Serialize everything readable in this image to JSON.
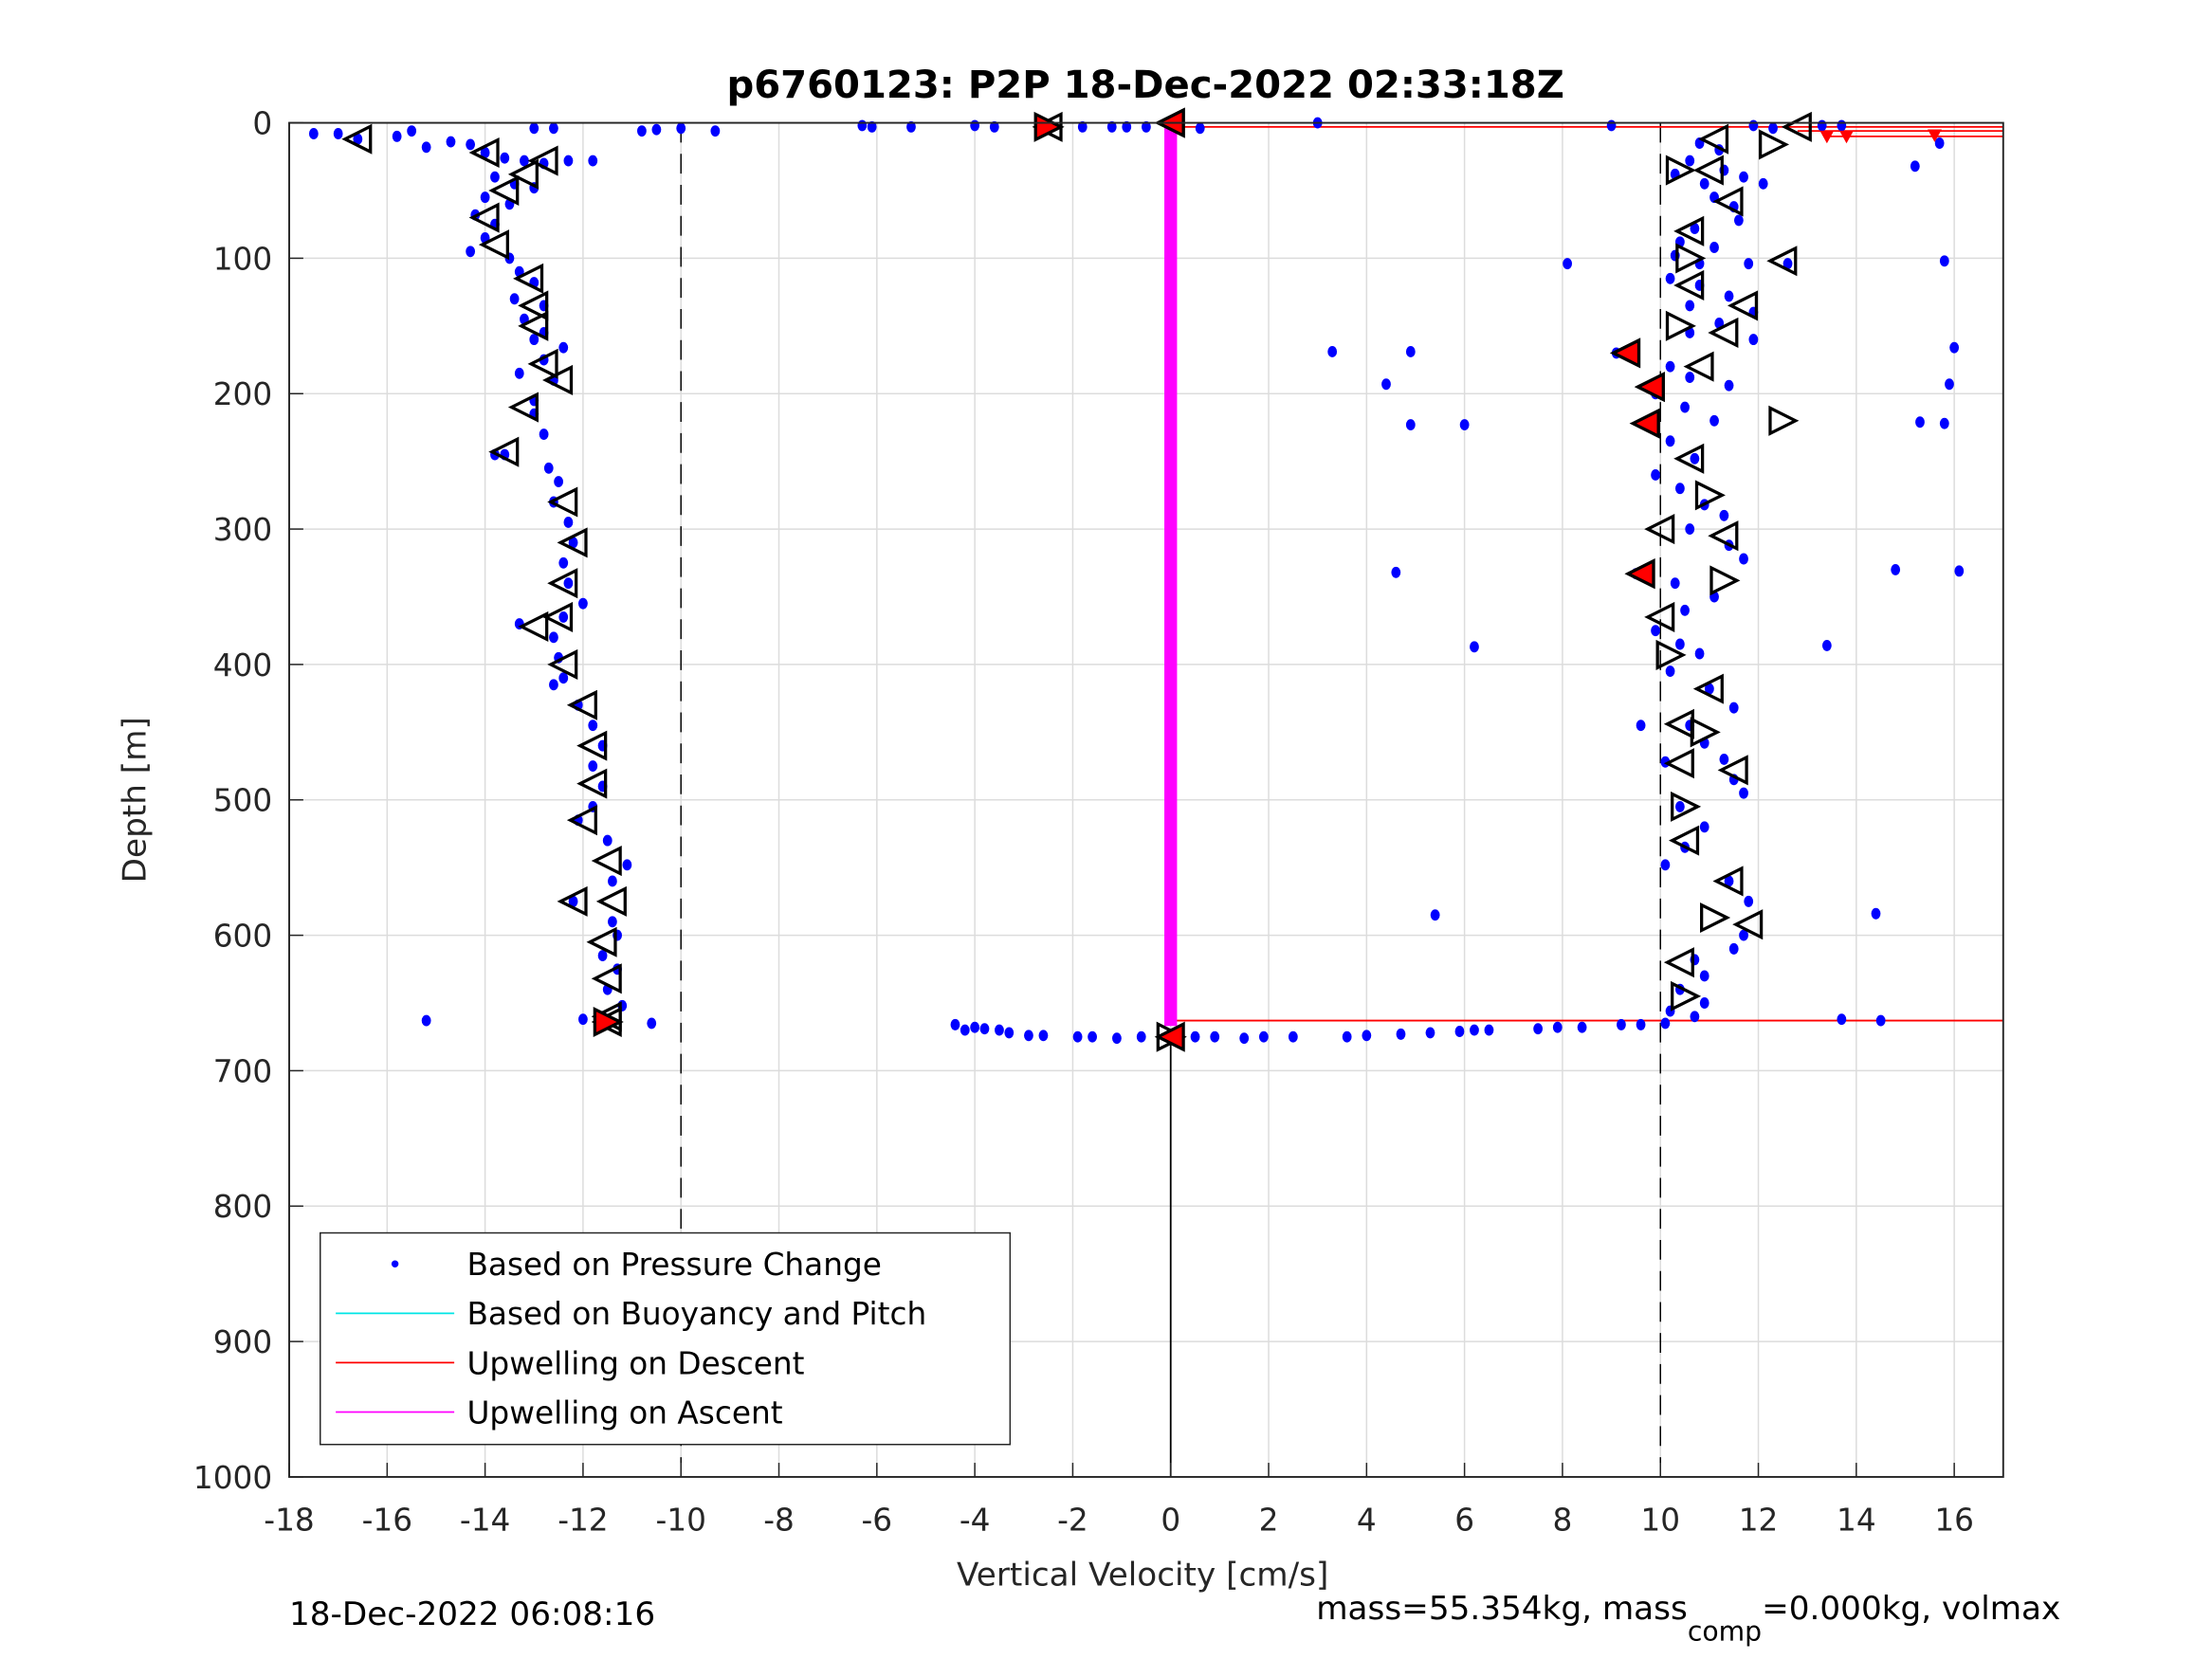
{
  "chart_data": {
    "type": "scatter",
    "title": "p6760123: P2P 18-Dec-2022 02:33:18Z",
    "xlabel": "Vertical Velocity [cm/s]",
    "ylabel": "Depth [m]",
    "xlim": [
      -18,
      17
    ],
    "ylim": [
      0,
      1000
    ],
    "y_reversed": true,
    "grid": true,
    "xticks": [
      "-18",
      "-16",
      "-14",
      "-12",
      "-10",
      "-8",
      "-6",
      "-4",
      "-2",
      "0",
      "2",
      "4",
      "6",
      "8",
      "10",
      "12",
      "14",
      "16"
    ],
    "yticks": [
      "0",
      "100",
      "200",
      "300",
      "400",
      "500",
      "600",
      "700",
      "800",
      "900",
      "1000"
    ],
    "legend": {
      "placement": "bottom-left",
      "entries": [
        {
          "label": "Based on Pressure Change",
          "color": "#0000ff"
        },
        {
          "label": "Based on Buoyancy and Pitch",
          "color": "#00e5e5"
        },
        {
          "label": "Upwelling on Descent",
          "color": "#ff0000"
        },
        {
          "label": "Upwelling on Ascent",
          "color": "#ff00ff"
        }
      ]
    },
    "reference_lines": {
      "dashed_x": [
        -10,
        10
      ]
    },
    "pressure_points": [
      [
        -17.5,
        8
      ],
      [
        -17,
        8
      ],
      [
        -16.6,
        12
      ],
      [
        -15.8,
        10
      ],
      [
        -15.5,
        6
      ],
      [
        -15.2,
        18
      ],
      [
        -14.7,
        14
      ],
      [
        -14.3,
        16
      ],
      [
        -14,
        22
      ],
      [
        -13.6,
        26
      ],
      [
        -13.2,
        28
      ],
      [
        -12.8,
        30
      ],
      [
        -12.3,
        28
      ],
      [
        -11.8,
        28
      ],
      [
        -13,
        4
      ],
      [
        -12.6,
        4
      ],
      [
        -10.8,
        6
      ],
      [
        -10.5,
        5
      ],
      [
        -10,
        4
      ],
      [
        -9.3,
        6
      ],
      [
        -6.3,
        2
      ],
      [
        -6.1,
        3
      ],
      [
        -5.3,
        3
      ],
      [
        -4,
        2
      ],
      [
        -3.6,
        3
      ],
      [
        -2.5,
        3
      ],
      [
        -1.8,
        3
      ],
      [
        -1.2,
        3
      ],
      [
        -0.9,
        3
      ],
      [
        -0.5,
        3
      ],
      [
        0.6,
        4
      ],
      [
        3,
        0
      ],
      [
        9,
        2
      ],
      [
        11.9,
        2
      ],
      [
        12.3,
        4
      ],
      [
        13.3,
        2
      ],
      [
        13.7,
        2
      ],
      [
        -13.8,
        40
      ],
      [
        -13.4,
        45
      ],
      [
        -13,
        48
      ],
      [
        -14,
        55
      ],
      [
        -13.5,
        60
      ],
      [
        -14.2,
        68
      ],
      [
        -13.8,
        75
      ],
      [
        -14,
        85
      ],
      [
        -14.3,
        95
      ],
      [
        -13.5,
        100
      ],
      [
        -13.3,
        110
      ],
      [
        -13,
        118
      ],
      [
        -13.4,
        130
      ],
      [
        -12.8,
        135
      ],
      [
        -13.2,
        145
      ],
      [
        -12.8,
        155
      ],
      [
        -13,
        160
      ],
      [
        -12.4,
        166
      ],
      [
        -12.8,
        175
      ],
      [
        -13.3,
        185
      ],
      [
        -12.6,
        190
      ],
      [
        -13,
        205
      ],
      [
        -13,
        215
      ],
      [
        -12.8,
        230
      ],
      [
        -13.6,
        245
      ],
      [
        -13.8,
        245
      ],
      [
        -12.7,
        255
      ],
      [
        -12.5,
        265
      ],
      [
        -12.6,
        280
      ],
      [
        -12.3,
        295
      ],
      [
        -12.2,
        310
      ],
      [
        -12.4,
        325
      ],
      [
        -12.3,
        340
      ],
      [
        -12,
        355
      ],
      [
        -12.4,
        365
      ],
      [
        -13.3,
        370
      ],
      [
        -12.6,
        380
      ],
      [
        -12.5,
        395
      ],
      [
        -12.4,
        410
      ],
      [
        -12.6,
        415
      ],
      [
        -12.1,
        430
      ],
      [
        -11.8,
        445
      ],
      [
        -11.6,
        460
      ],
      [
        -11.8,
        475
      ],
      [
        -11.6,
        490
      ],
      [
        -11.8,
        505
      ],
      [
        -12.1,
        515
      ],
      [
        -11.5,
        530
      ],
      [
        -11.1,
        548
      ],
      [
        -11.4,
        560
      ],
      [
        -12.2,
        575
      ],
      [
        -11.4,
        590
      ],
      [
        -11.3,
        600
      ],
      [
        -11.6,
        615
      ],
      [
        -11.3,
        625
      ],
      [
        -11.5,
        640
      ],
      [
        -11.2,
        652
      ],
      [
        -11.6,
        660
      ],
      [
        -15.2,
        663
      ],
      [
        -10.6,
        665
      ],
      [
        -12,
        662
      ],
      [
        -4.4,
        666
      ],
      [
        -4.2,
        670
      ],
      [
        -4,
        668
      ],
      [
        -3.8,
        669
      ],
      [
        -3.5,
        670
      ],
      [
        -3.3,
        672
      ],
      [
        -2.9,
        674
      ],
      [
        -2.6,
        674
      ],
      [
        -1.9,
        675
      ],
      [
        -1.6,
        675
      ],
      [
        -1.1,
        676
      ],
      [
        -0.6,
        675
      ],
      [
        0.5,
        675
      ],
      [
        0.9,
        675
      ],
      [
        1.5,
        676
      ],
      [
        1.9,
        675
      ],
      [
        2.5,
        675
      ],
      [
        3.6,
        675
      ],
      [
        4,
        674
      ],
      [
        4.7,
        673
      ],
      [
        5.3,
        672
      ],
      [
        5.9,
        671
      ],
      [
        6.2,
        670
      ],
      [
        6.5,
        670
      ],
      [
        7.5,
        669
      ],
      [
        7.9,
        668
      ],
      [
        8.4,
        668
      ],
      [
        9.2,
        666
      ],
      [
        9.6,
        666
      ],
      [
        10.1,
        665
      ],
      [
        10.8,
        15
      ],
      [
        11.2,
        20
      ],
      [
        10.6,
        28
      ],
      [
        11.3,
        35
      ],
      [
        10.3,
        38
      ],
      [
        10.9,
        45
      ],
      [
        11.7,
        40
      ],
      [
        12.1,
        45
      ],
      [
        11.1,
        55
      ],
      [
        11.5,
        62
      ],
      [
        11.6,
        72
      ],
      [
        10.7,
        78
      ],
      [
        10.4,
        88
      ],
      [
        11.1,
        92
      ],
      [
        10.3,
        98
      ],
      [
        10.8,
        104
      ],
      [
        11.8,
        104
      ],
      [
        12.6,
        104
      ],
      [
        8.1,
        104
      ],
      [
        15.8,
        102
      ],
      [
        10.2,
        115
      ],
      [
        10.8,
        120
      ],
      [
        11.4,
        128
      ],
      [
        10.6,
        135
      ],
      [
        11.9,
        140
      ],
      [
        11.2,
        148
      ],
      [
        10.6,
        155
      ],
      [
        11.9,
        160
      ],
      [
        3.3,
        169
      ],
      [
        4.9,
        169
      ],
      [
        9.1,
        170
      ],
      [
        9.4,
        172
      ],
      [
        16,
        166
      ],
      [
        15.9,
        193
      ],
      [
        10.2,
        180
      ],
      [
        10.6,
        188
      ],
      [
        11.4,
        194
      ],
      [
        4.4,
        193
      ],
      [
        9.9,
        200
      ],
      [
        10.5,
        210
      ],
      [
        11.1,
        220
      ],
      [
        4.9,
        223
      ],
      [
        6,
        223
      ],
      [
        15.3,
        221
      ],
      [
        15.8,
        222
      ],
      [
        9.7,
        222
      ],
      [
        10.2,
        235
      ],
      [
        10.7,
        248
      ],
      [
        9.9,
        260
      ],
      [
        10.4,
        270
      ],
      [
        10.9,
        282
      ],
      [
        11.3,
        290
      ],
      [
        10.6,
        300
      ],
      [
        11.4,
        312
      ],
      [
        11.7,
        322
      ],
      [
        9.5,
        333
      ],
      [
        4.6,
        332
      ],
      [
        14.8,
        330
      ],
      [
        16.1,
        331
      ],
      [
        10.3,
        340
      ],
      [
        11.1,
        350
      ],
      [
        10.5,
        360
      ],
      [
        9.9,
        375
      ],
      [
        10.4,
        385
      ],
      [
        6.2,
        387
      ],
      [
        13.4,
        386
      ],
      [
        10.8,
        392
      ],
      [
        10.2,
        405
      ],
      [
        11,
        418
      ],
      [
        11.5,
        432
      ],
      [
        10.6,
        445
      ],
      [
        9.6,
        445
      ],
      [
        10.9,
        458
      ],
      [
        11.3,
        470
      ],
      [
        10.1,
        472
      ],
      [
        11.5,
        485
      ],
      [
        11.7,
        495
      ],
      [
        10.4,
        505
      ],
      [
        10.9,
        520
      ],
      [
        10.5,
        535
      ],
      [
        10.1,
        548
      ],
      [
        11.4,
        560
      ],
      [
        11.8,
        575
      ],
      [
        5.4,
        585
      ],
      [
        14.4,
        584
      ],
      [
        11.7,
        600
      ],
      [
        11.5,
        610
      ],
      [
        10.7,
        618
      ],
      [
        10.9,
        630
      ],
      [
        10.4,
        640
      ],
      [
        10.9,
        650
      ],
      [
        10.2,
        656
      ],
      [
        10.7,
        660
      ],
      [
        13.7,
        662
      ],
      [
        14.5,
        663
      ],
      [
        15.2,
        32
      ],
      [
        15.7,
        15
      ]
    ],
    "descent_markers": [
      [
        -16.6,
        12
      ],
      [
        -14,
        22
      ],
      [
        -12.8,
        28
      ],
      [
        -13.2,
        38
      ],
      [
        -13.6,
        50
      ],
      [
        -14,
        70
      ],
      [
        -13.8,
        90
      ],
      [
        -13.1,
        115
      ],
      [
        -13,
        135
      ],
      [
        -13,
        150
      ],
      [
        -12.8,
        178
      ],
      [
        -12.5,
        190
      ],
      [
        -13.2,
        210
      ],
      [
        -13.6,
        243
      ],
      [
        -12.4,
        280
      ],
      [
        -12.2,
        310
      ],
      [
        -12.4,
        340
      ],
      [
        -12.5,
        365
      ],
      [
        -13,
        372
      ],
      [
        -12.4,
        400
      ],
      [
        -12,
        430
      ],
      [
        -11.8,
        460
      ],
      [
        -11.8,
        488
      ],
      [
        -12,
        515
      ],
      [
        -11.5,
        545
      ],
      [
        -11.4,
        575
      ],
      [
        -12.2,
        575
      ],
      [
        -11.6,
        605
      ],
      [
        -11.5,
        632
      ],
      [
        -11.5,
        660
      ],
      [
        -2.5,
        3
      ],
      [
        0,
        0
      ]
    ],
    "ascent_markers": [
      [
        12.8,
        3
      ],
      [
        12.3,
        16
      ],
      [
        11.1,
        12
      ],
      [
        11,
        35
      ],
      [
        10.4,
        35
      ],
      [
        11.4,
        58
      ],
      [
        10.6,
        80
      ],
      [
        10.6,
        100
      ],
      [
        10.6,
        120
      ],
      [
        11.7,
        135
      ],
      [
        10.4,
        150
      ],
      [
        11.3,
        155
      ],
      [
        10.8,
        180
      ],
      [
        12.5,
        220
      ],
      [
        9.7,
        222
      ],
      [
        10.6,
        248
      ],
      [
        11,
        275
      ],
      [
        11.3,
        305
      ],
      [
        10,
        300
      ],
      [
        11.3,
        338
      ],
      [
        9.6,
        333
      ],
      [
        10,
        365
      ],
      [
        10.2,
        393
      ],
      [
        11,
        418
      ],
      [
        10.4,
        444
      ],
      [
        10.9,
        450
      ],
      [
        10.4,
        473
      ],
      [
        11.5,
        478
      ],
      [
        10.5,
        505
      ],
      [
        10.5,
        530
      ],
      [
        11.4,
        560
      ],
      [
        11.1,
        587
      ],
      [
        11.8,
        592
      ],
      [
        10.4,
        620
      ],
      [
        10.5,
        645
      ],
      [
        9.3,
        170
      ],
      [
        9.8,
        195
      ],
      [
        0,
        675
      ],
      [
        12.5,
        102
      ],
      [
        -11.5,
        664
      ]
    ],
    "red_filled_markers": [
      [
        -2.5,
        3
      ],
      [
        0,
        0
      ],
      [
        9.3,
        170
      ],
      [
        9.8,
        195
      ],
      [
        9.7,
        222
      ],
      [
        9.6,
        333
      ],
      [
        -11.5,
        664
      ],
      [
        0,
        675
      ],
      [
        13.4,
        10
      ],
      [
        13.8,
        10
      ],
      [
        15.6,
        9
      ]
    ],
    "descent_upwelling_lines": [
      {
        "x": [
          0,
          17
        ],
        "depth": 3
      },
      {
        "x": [
          12.8,
          17
        ],
        "depth": 6
      },
      {
        "x": [
          13.4,
          17
        ],
        "depth": 10
      },
      {
        "x": [
          0,
          17
        ],
        "depth": 663
      }
    ],
    "ascent_upwelling_line": {
      "x": 0,
      "depth": [
        3,
        667
      ]
    },
    "black_line": {
      "x": 0,
      "depth": [
        675,
        1000
      ]
    }
  },
  "footer": {
    "timestamp": "18-Dec-2022 06:08:16",
    "mass_text_a": "mass=55.354kg, mass",
    "mass_sub": "comp",
    "mass_text_b": "=0.000kg, volmax"
  }
}
